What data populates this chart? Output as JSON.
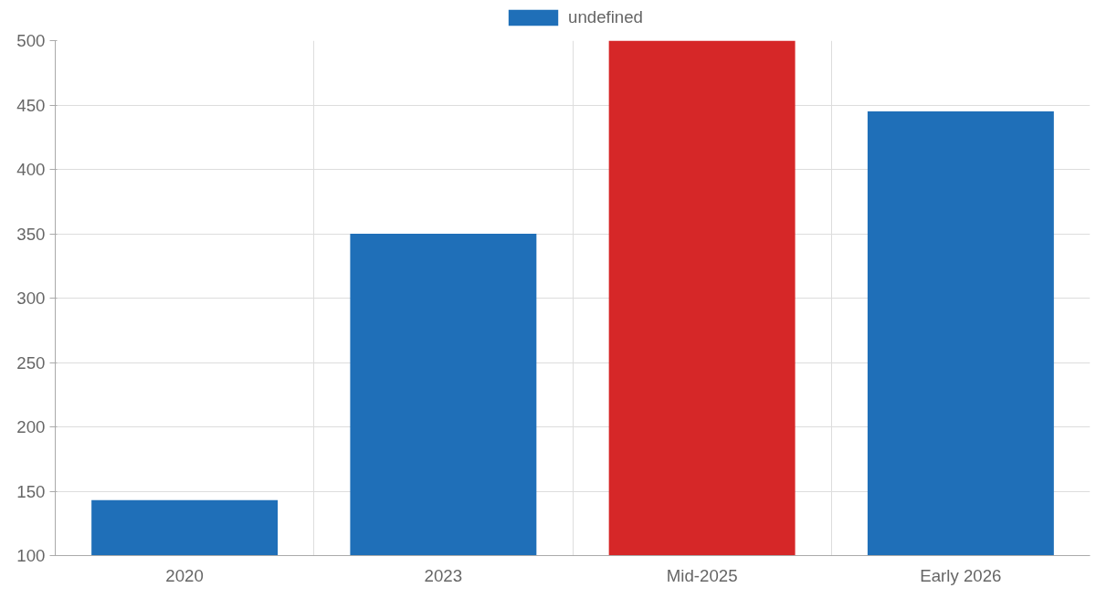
{
  "chart_data": {
    "type": "bar",
    "categories": [
      "2020",
      "2023",
      "Mid-2025",
      "Early 2026"
    ],
    "series": [
      {
        "name": "undefined",
        "color": "#1f6fb8",
        "colors": [
          "#1f6fb8",
          "#1f6fb8",
          "#d62728",
          "#1f6fb8"
        ],
        "values": [
          143,
          350,
          500,
          445
        ]
      }
    ],
    "ylim": [
      100,
      500
    ],
    "yticks": [
      100,
      150,
      200,
      250,
      300,
      350,
      400,
      450,
      500
    ],
    "grid": true,
    "legend": "top"
  }
}
